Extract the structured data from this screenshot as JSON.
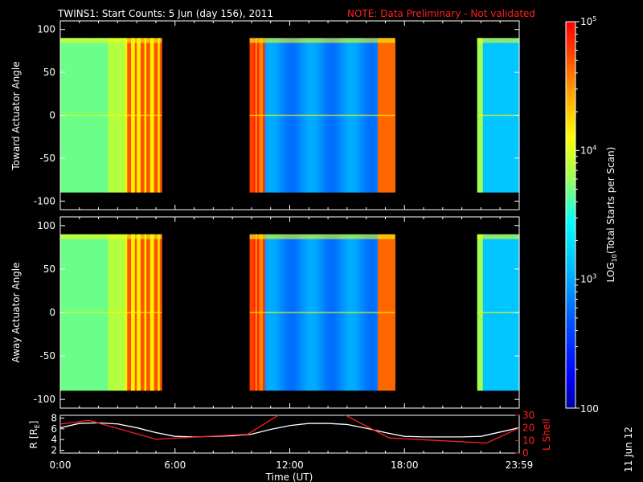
{
  "title": "TWINS1: Start Counts:  5 Jun (day 156), 2011",
  "note": "NOTE: Data Preliminary - Not validated",
  "date_stamp": "11 Jun 12",
  "colorbar": {
    "label": "LOG10(Total Starts per Scan)",
    "label_pre": "LOG",
    "label_sub": "10",
    "label_post": "(Total Starts per Scan)",
    "ticks": [
      {
        "value": 100000,
        "base": "10",
        "exp": "5"
      },
      {
        "value": 10000,
        "base": "10",
        "exp": "4"
      },
      {
        "value": 1000,
        "base": "10",
        "exp": "3"
      },
      {
        "value": 100,
        "base": "100",
        "exp": ""
      }
    ],
    "scale": "log",
    "range": [
      100,
      100000
    ],
    "colors": [
      "#00009a",
      "#0000ff",
      "#0050ff",
      "#00b4ff",
      "#00ffff",
      "#a0ff50",
      "#ffff00",
      "#ffa000",
      "#ff4000",
      "#ff0000"
    ]
  },
  "chart_data": [
    {
      "type": "heatmap",
      "ylabel": "Toward Actuator Angle",
      "yticks": [
        "100",
        "50",
        "0",
        "-50",
        "-100"
      ],
      "ylim": [
        -110,
        110
      ],
      "xlim": [
        0,
        24
      ],
      "data_ylim": [
        -90,
        90
      ],
      "segments": [
        {
          "t_start": 0.0,
          "t_end": 5.3
        },
        {
          "t_start": 9.9,
          "t_end": 17.5
        },
        {
          "t_start": 21.8,
          "t_end": 24.0
        }
      ]
    },
    {
      "type": "heatmap",
      "ylabel": "Away Actuator Angle",
      "yticks": [
        "100",
        "50",
        "0",
        "-50",
        "-100"
      ],
      "ylim": [
        -110,
        110
      ],
      "xlim": [
        0,
        24
      ],
      "data_ylim": [
        -90,
        90
      ],
      "segments": [
        {
          "t_start": 0.0,
          "t_end": 5.3
        },
        {
          "t_start": 9.9,
          "t_end": 17.5
        },
        {
          "t_start": 21.8,
          "t_end": 24.0
        }
      ]
    },
    {
      "type": "line",
      "xlabel": "Time (UT)",
      "xticks": [
        "0:00",
        "6:00",
        "12:00",
        "18:00",
        "23:59"
      ],
      "xtick_values": [
        0,
        6,
        12,
        18,
        24
      ],
      "ylabel_left": "R [RE]",
      "ylabel_left_pre": "R [R",
      "ylabel_left_sub": "E",
      "ylabel_left_post": "]",
      "yticks_left": [
        "8",
        "6",
        "4",
        "2"
      ],
      "ylim_left": [
        1.5,
        8.5
      ],
      "ylabel_right": "L Shell",
      "yticks_right": [
        "30",
        "20",
        "10",
        "0"
      ],
      "ylim_right": [
        0,
        30
      ],
      "series": [
        {
          "axis": "left",
          "color": "#ffffff",
          "x": [
            0,
            1,
            2,
            3,
            4,
            5,
            6,
            7,
            8,
            9,
            10,
            11,
            12,
            13,
            14,
            15,
            16,
            17,
            18,
            19,
            20,
            21,
            22,
            23,
            24
          ],
          "y": [
            6.2,
            7.0,
            7.1,
            6.9,
            6.2,
            5.3,
            4.6,
            4.5,
            4.6,
            4.7,
            5.0,
            5.9,
            6.6,
            7.0,
            7.0,
            6.8,
            6.1,
            5.3,
            4.6,
            4.5,
            4.5,
            4.5,
            4.6,
            5.4,
            6.2
          ]
        },
        {
          "axis": "right",
          "color": "#ff2020",
          "x": [
            0,
            1.5,
            5.0,
            9.8,
            11.5,
            14.8,
            17.2,
            22.3,
            24
          ],
          "y": [
            23,
            26,
            11,
            15,
            31,
            31,
            12,
            8,
            20
          ]
        }
      ]
    }
  ]
}
